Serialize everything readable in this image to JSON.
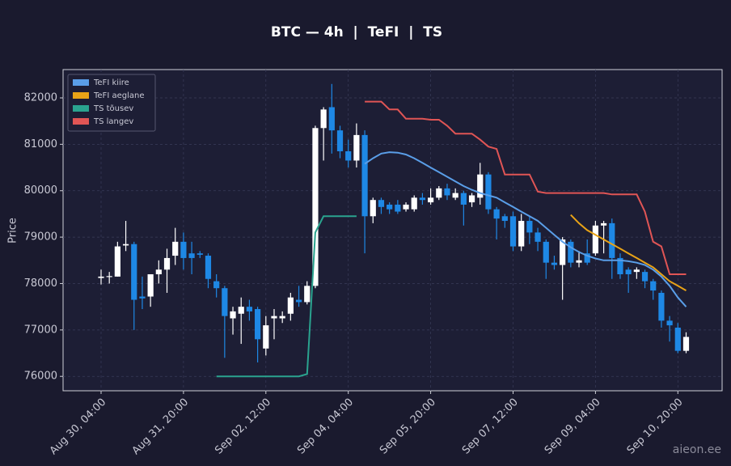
{
  "chart_data": {
    "type": "candlestick",
    "title": "BTC — 4h  |  TeFI  |  TS",
    "ylabel": "Price",
    "watermark": "aieon.ee",
    "categories": [
      "Aug 30, 04:00",
      null,
      null,
      null,
      null,
      null,
      null,
      null,
      null,
      null,
      "Aug 31, 20:00",
      null,
      null,
      null,
      null,
      null,
      null,
      null,
      null,
      null,
      "Sep 02, 12:00",
      null,
      null,
      null,
      null,
      null,
      null,
      null,
      null,
      null,
      "Sep 04, 04:00",
      null,
      null,
      null,
      null,
      null,
      null,
      null,
      null,
      null,
      "Sep 05, 20:00",
      null,
      null,
      null,
      null,
      null,
      null,
      null,
      null,
      null,
      "Sep 07, 12:00",
      null,
      null,
      null,
      null,
      null,
      null,
      null,
      null,
      null,
      "Sep 09, 04:00",
      null,
      null,
      null,
      null,
      null,
      null,
      null,
      null,
      null,
      "Sep 10, 20:00",
      null
    ],
    "open": [
      78120,
      78140,
      78150,
      78820,
      78850,
      77720,
      77720,
      78200,
      78300,
      78600,
      78900,
      78650,
      78650,
      78600,
      78050,
      77900,
      77250,
      77350,
      77500,
      77450,
      76600,
      77250,
      77250,
      77350,
      77650,
      77600,
      77950,
      81350,
      81800,
      81300,
      80850,
      80650,
      81200,
      79450,
      79800,
      79700,
      79700,
      79600,
      79600,
      79850,
      79750,
      79850,
      80050,
      79850,
      79950,
      79750,
      79850,
      80350,
      79600,
      79450,
      79450,
      78800,
      79350,
      79100,
      78900,
      78450,
      78400,
      78900,
      78450,
      78650,
      78650,
      79250,
      79300,
      78550,
      78300,
      78250,
      78250,
      78050,
      77800,
      77200,
      77050,
      76550
    ],
    "high": [
      78300,
      78250,
      78900,
      79350,
      78900,
      78150,
      78200,
      78500,
      78750,
      79200,
      79100,
      78900,
      78700,
      78650,
      78200,
      77950,
      77500,
      77700,
      77650,
      77500,
      77300,
      77450,
      77400,
      77800,
      77950,
      78050,
      81400,
      81800,
      82300,
      81400,
      81100,
      81450,
      81300,
      79850,
      79850,
      79750,
      79800,
      79750,
      79900,
      79950,
      80050,
      80100,
      80150,
      80050,
      80000,
      79950,
      80600,
      80400,
      79650,
      79500,
      79550,
      79500,
      79450,
      79200,
      78950,
      78600,
      79000,
      78950,
      78700,
      78950,
      79350,
      79350,
      79400,
      78650,
      78350,
      78350,
      78300,
      78100,
      77850,
      77300,
      77150,
      76950
    ],
    "low": [
      77980,
      78000,
      78150,
      78700,
      77000,
      77450,
      77500,
      78000,
      77800,
      78400,
      78300,
      78200,
      78550,
      77900,
      77700,
      76400,
      76900,
      76700,
      77200,
      76300,
      76450,
      76800,
      77150,
      77200,
      77500,
      77550,
      77900,
      80650,
      80800,
      80700,
      80500,
      80500,
      78650,
      79300,
      79500,
      79500,
      79500,
      79550,
      79550,
      79700,
      79700,
      79800,
      79800,
      79800,
      79250,
      79650,
      79700,
      79500,
      78950,
      79200,
      78700,
      78700,
      78850,
      78700,
      78100,
      78300,
      77650,
      78350,
      78350,
      78400,
      78600,
      78650,
      78100,
      78100,
      77800,
      78100,
      77900,
      77650,
      77050,
      76750,
      76500,
      76500
    ],
    "close": [
      78150,
      78160,
      78800,
      78850,
      77650,
      77680,
      78200,
      78300,
      78550,
      78900,
      78550,
      78550,
      78620,
      78100,
      77900,
      77300,
      77400,
      77500,
      77400,
      76800,
      77100,
      77300,
      77300,
      77700,
      77600,
      77950,
      81350,
      81750,
      81300,
      80850,
      80650,
      81200,
      79450,
      79800,
      79650,
      79600,
      79550,
      79700,
      79850,
      79800,
      79850,
      80050,
      79900,
      79950,
      79700,
      79900,
      80350,
      79600,
      79400,
      79350,
      78800,
      79350,
      79100,
      78900,
      78450,
      78400,
      78950,
      78450,
      78500,
      78450,
      79250,
      79300,
      78550,
      78200,
      78200,
      78300,
      78050,
      77850,
      77200,
      77100,
      76550,
      76850
    ],
    "up_color": "#ffffff",
    "down_color": "#1e88e5",
    "series": [
      {
        "name": "TeFI kiire",
        "color": "#5a9ee8",
        "values": [
          null,
          null,
          null,
          null,
          null,
          null,
          null,
          null,
          null,
          null,
          null,
          null,
          null,
          null,
          null,
          null,
          null,
          null,
          null,
          null,
          null,
          null,
          null,
          null,
          null,
          null,
          null,
          null,
          null,
          null,
          null,
          null,
          80580,
          80700,
          80800,
          80830,
          80820,
          80780,
          80700,
          80600,
          80500,
          80400,
          80300,
          80200,
          80100,
          80020,
          79950,
          79900,
          79850,
          79750,
          79650,
          79550,
          79450,
          79350,
          79200,
          79050,
          78900,
          78780,
          78680,
          78600,
          78540,
          78500,
          78500,
          78500,
          78480,
          78450,
          78400,
          78300,
          78150,
          77950,
          77700,
          77500
        ]
      },
      {
        "name": "TeFI aeglane",
        "color": "#e8a317",
        "values": [
          null,
          null,
          null,
          null,
          null,
          null,
          null,
          null,
          null,
          null,
          null,
          null,
          null,
          null,
          null,
          null,
          null,
          null,
          null,
          null,
          null,
          null,
          null,
          null,
          null,
          null,
          null,
          null,
          null,
          null,
          null,
          null,
          null,
          null,
          null,
          null,
          null,
          null,
          null,
          null,
          null,
          null,
          null,
          null,
          null,
          null,
          null,
          null,
          null,
          null,
          null,
          null,
          null,
          null,
          null,
          null,
          null,
          79480,
          79300,
          79150,
          79050,
          78950,
          78850,
          78750,
          78650,
          78550,
          78450,
          78350,
          78200,
          78050,
          77950,
          77850
        ]
      },
      {
        "name": "TS tõusev",
        "color": "#2aa38f",
        "values": [
          null,
          null,
          null,
          null,
          null,
          null,
          null,
          null,
          null,
          null,
          null,
          null,
          null,
          null,
          76000,
          76000,
          76000,
          76000,
          76000,
          76000,
          76000,
          76000,
          76000,
          76000,
          76000,
          76050,
          79100,
          79450,
          79450,
          79450,
          79450,
          79450,
          null,
          null,
          null,
          null,
          null,
          null,
          null,
          null,
          null,
          null,
          null,
          null,
          null,
          null,
          null,
          null,
          null,
          null,
          null,
          null,
          null,
          null,
          null,
          null,
          null,
          null,
          null,
          null,
          null,
          null,
          null,
          null,
          null,
          null,
          null,
          null,
          null,
          null,
          null,
          null
        ]
      },
      {
        "name": "TS langev",
        "color": "#e05555",
        "values": [
          null,
          null,
          null,
          null,
          null,
          null,
          null,
          null,
          null,
          null,
          null,
          null,
          null,
          null,
          null,
          null,
          null,
          null,
          null,
          null,
          null,
          null,
          null,
          null,
          null,
          null,
          null,
          null,
          null,
          null,
          null,
          null,
          81920,
          81920,
          81920,
          81750,
          81750,
          81550,
          81550,
          81550,
          81530,
          81530,
          81400,
          81230,
          81230,
          81230,
          81100,
          80950,
          80900,
          80350,
          80350,
          80350,
          80350,
          79980,
          79950,
          79950,
          79950,
          79950,
          79950,
          79950,
          79950,
          79950,
          79920,
          79920,
          79920,
          79920,
          79550,
          78900,
          78800,
          78200,
          78200,
          78200
        ]
      }
    ],
    "ylim": [
      75690,
      82610
    ],
    "yticks": [
      76000,
      77000,
      78000,
      79000,
      80000,
      81000,
      82000
    ],
    "grid": true,
    "legend": "upper left"
  }
}
